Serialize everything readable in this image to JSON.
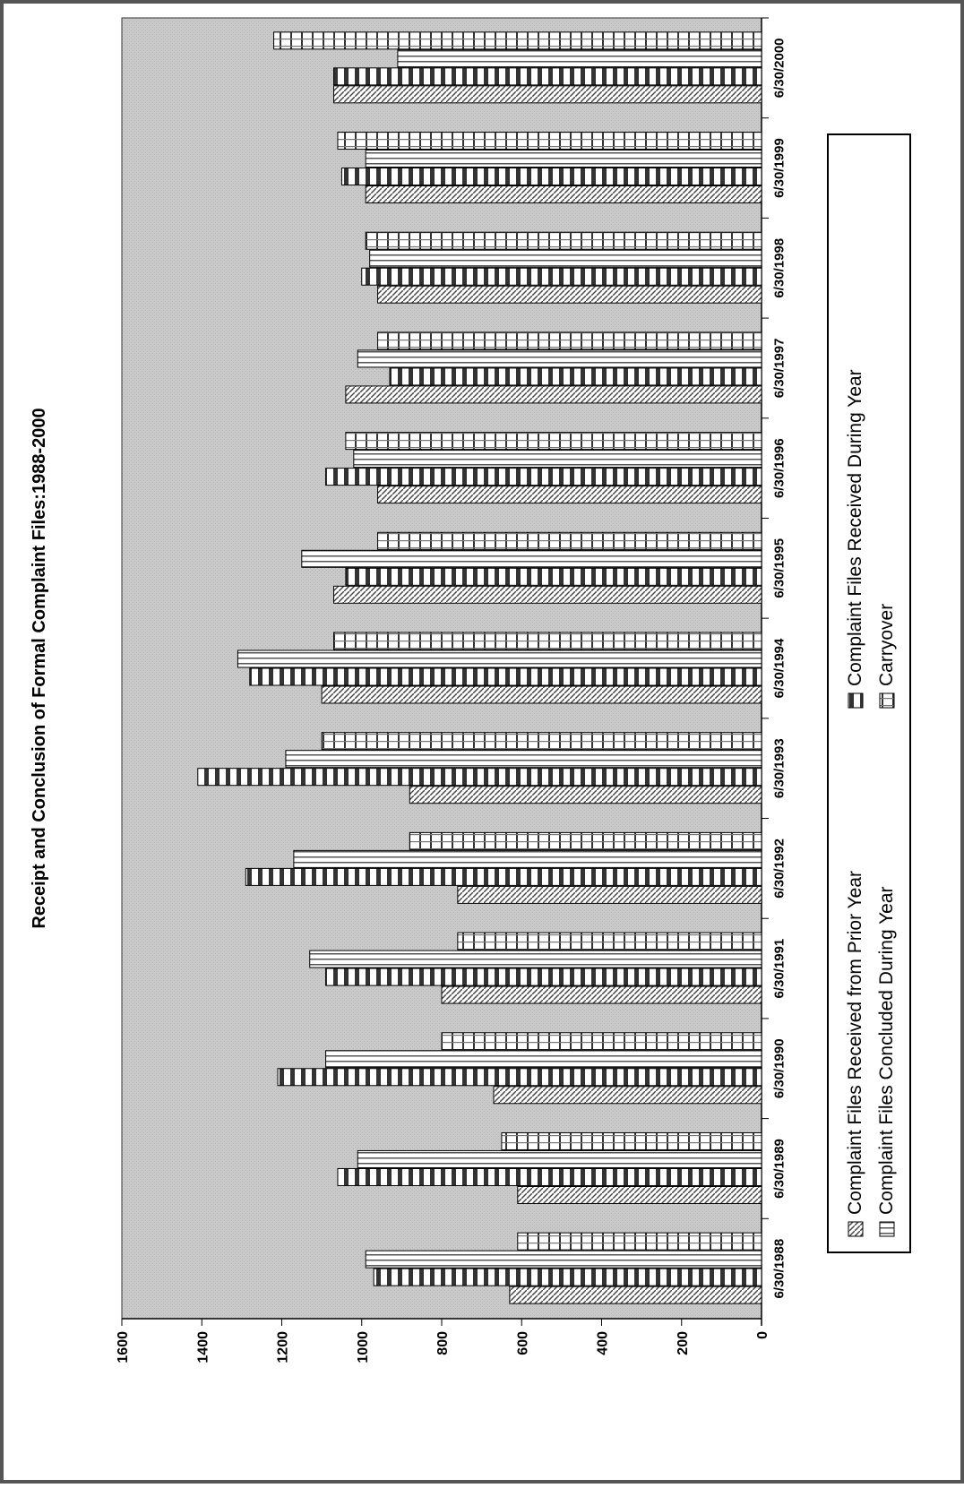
{
  "chart_data": {
    "type": "bar",
    "orientation": "horizontal-rotated",
    "title": "Receipt and Conclusion of Formal Complaint Files:1988-2000",
    "xlabel": "",
    "ylabel": "",
    "ylim": [
      0,
      1600
    ],
    "yticks": [
      "0",
      "200",
      "400",
      "600",
      "800",
      "1000",
      "1200",
      "1400",
      "1600"
    ],
    "grid": false,
    "legend_position": "bottom",
    "categories": [
      "6/30/1988",
      "6/30/1989",
      "6/30/1990",
      "6/30/1991",
      "6/30/1992",
      "6/30/1993",
      "6/30/1994",
      "6/30/1995",
      "6/30/1996",
      "6/30/1997",
      "6/30/1998",
      "6/30/1999",
      "6/30/2000"
    ],
    "series": [
      {
        "name": "Complaint Files Received from Prior Year",
        "pattern": "diagonal",
        "values": [
          630,
          610,
          670,
          800,
          760,
          880,
          1100,
          1070,
          960,
          1040,
          960,
          990,
          1070
        ]
      },
      {
        "name": "Complaint Files Received During Year",
        "pattern": "vertical",
        "values": [
          970,
          1060,
          1210,
          1090,
          1290,
          1410,
          1280,
          1040,
          1090,
          930,
          1000,
          1050,
          1070
        ]
      },
      {
        "name": "Complaint Files Concluded During Year",
        "pattern": "horizontal",
        "values": [
          990,
          1010,
          1090,
          1130,
          1170,
          1190,
          1310,
          1150,
          1020,
          1010,
          980,
          990,
          910
        ]
      },
      {
        "name": "Carryover",
        "pattern": "grid",
        "values": [
          610,
          650,
          800,
          760,
          880,
          1100,
          1070,
          960,
          1040,
          960,
          990,
          1060,
          1220
        ]
      }
    ]
  },
  "colors": {
    "plot_background": "#c8c8c8",
    "bar_fill": "#ffffff",
    "bar_pattern": "#333333",
    "axis": "#000000"
  }
}
